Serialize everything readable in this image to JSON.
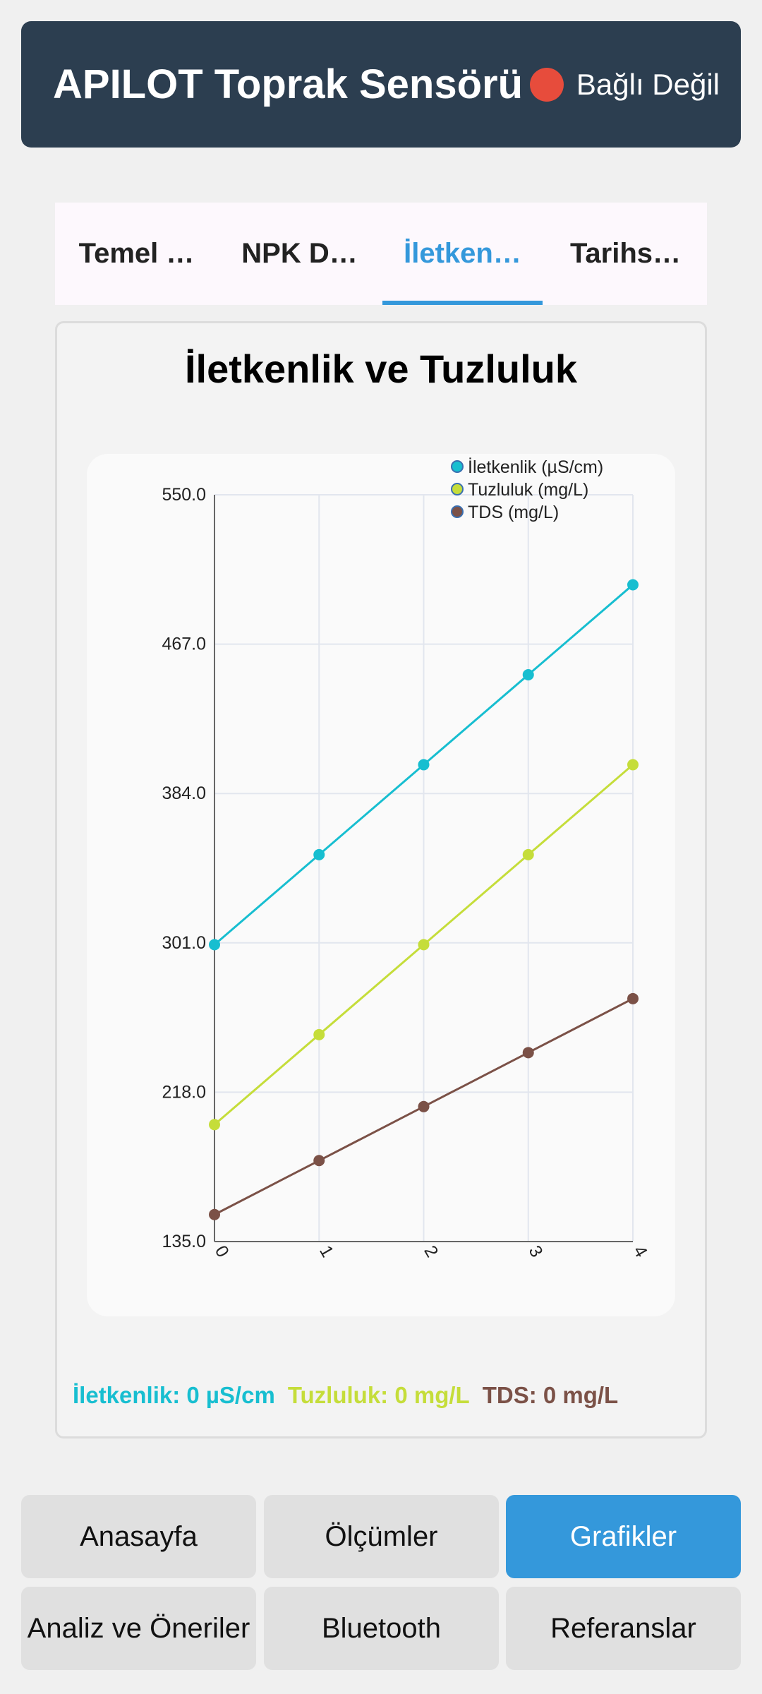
{
  "header": {
    "title": "APILOT Toprak Sensörü",
    "status_text": "Bağlı Değil",
    "status_color": "#e74c3c"
  },
  "tabs": [
    {
      "label": "Temel …",
      "active": false
    },
    {
      "label": "NPK D…",
      "active": false
    },
    {
      "label": "İletken…",
      "active": true
    },
    {
      "label": "Tarihs…",
      "active": false
    }
  ],
  "card": {
    "title": "İletkenlik ve Tuzluluk"
  },
  "chart_data": {
    "type": "line",
    "x": [
      0,
      1,
      2,
      3,
      4
    ],
    "ylim": [
      135.0,
      550.0
    ],
    "yticks": [
      "550.0",
      "467.0",
      "384.0",
      "301.0",
      "218.0",
      "135.0"
    ],
    "xticks": [
      "0",
      "1",
      "2",
      "3",
      "4"
    ],
    "grid": true,
    "legend_position": "top-right",
    "series": [
      {
        "name": "İletkenlik (µS/cm)",
        "color": "#17bed0",
        "values": [
          300,
          350,
          400,
          450,
          500
        ]
      },
      {
        "name": "Tuzluluk (mg/L)",
        "color": "#c5dd3a",
        "values": [
          200,
          250,
          300,
          350,
          400
        ]
      },
      {
        "name": "TDS (mg/L)",
        "color": "#7b5147",
        "values": [
          150,
          180,
          210,
          240,
          270
        ]
      }
    ]
  },
  "readings": [
    {
      "text": "İletkenlik: 0 µS/cm",
      "color": "#17bed0"
    },
    {
      "text": "Tuzluluk: 0 mg/L",
      "color": "#c5dd3a"
    },
    {
      "text": "TDS: 0 mg/L",
      "color": "#7b5147"
    }
  ],
  "nav": [
    {
      "label": "Anasayfa",
      "active": false
    },
    {
      "label": "Ölçümler",
      "active": false
    },
    {
      "label": "Grafikler",
      "active": true
    },
    {
      "label": "Analiz ve Öneriler",
      "active": false
    },
    {
      "label": "Bluetooth",
      "active": false
    },
    {
      "label": "Referanslar",
      "active": false
    }
  ]
}
